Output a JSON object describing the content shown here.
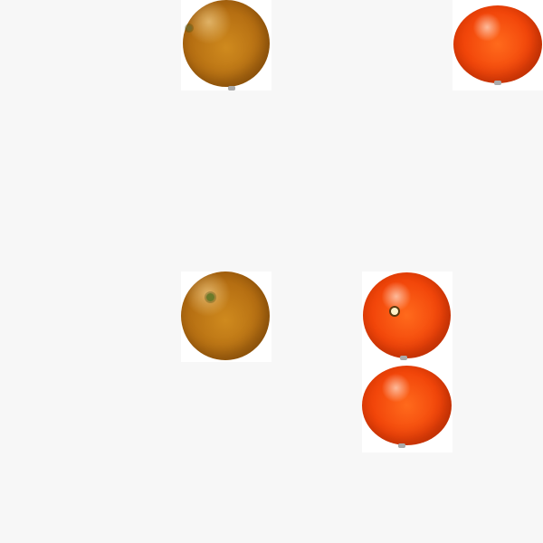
{
  "scene": {
    "background_color": "#f7f7f7",
    "tile_color": "#ffffff",
    "items": [
      {
        "label": "",
        "kind": "orange",
        "detail": "stem"
      },
      {
        "label": "",
        "kind": "mandarin",
        "detail": "none"
      },
      {
        "label": "",
        "kind": "orange",
        "detail": "stem"
      },
      {
        "label": "",
        "kind": "mandarin",
        "detail": "navel"
      },
      {
        "label": "",
        "kind": "mandarin",
        "detail": "none"
      }
    ],
    "colors": {
      "orange": "#b66f12",
      "mandarin": "#f2460a"
    }
  }
}
